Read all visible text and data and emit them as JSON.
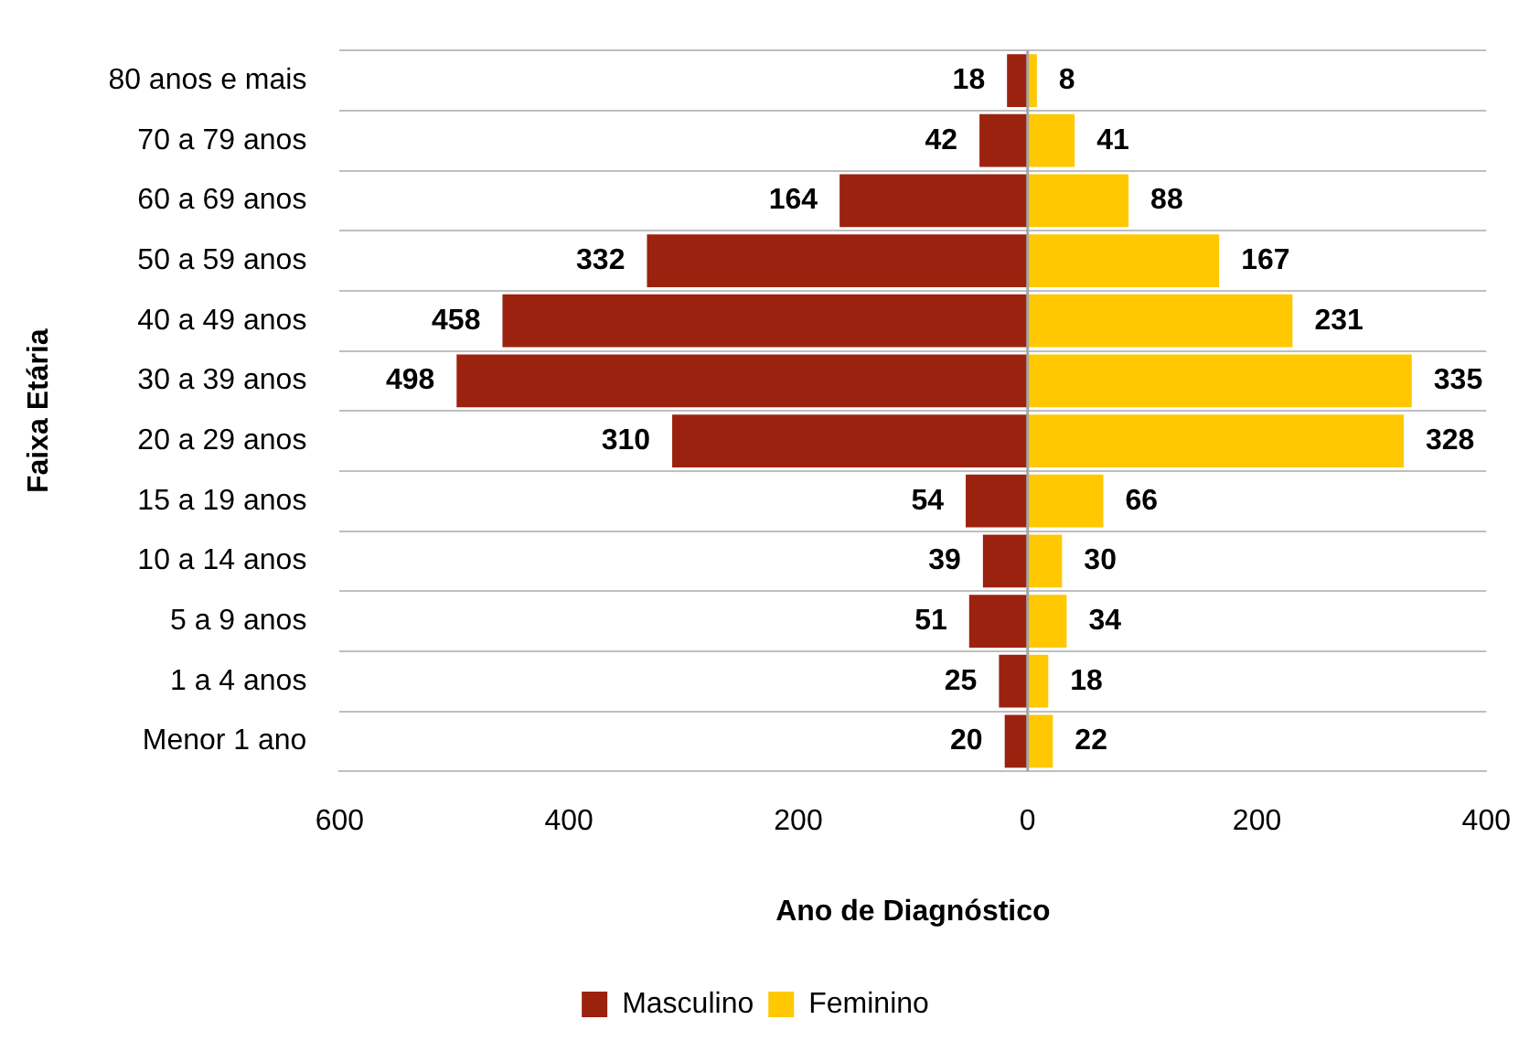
{
  "chart_data": {
    "type": "bar",
    "orientation": "horizontal",
    "xlabel": "Ano de Diagnóstico",
    "ylabel": "Faixa Etária",
    "categories": [
      "80 anos e mais",
      "70 a 79 anos",
      "60 a 69 anos",
      "50 a 59 anos",
      "40 a 49 anos",
      "30 a 39 anos",
      "20 a 29 anos",
      "15 a 19 anos",
      "10 a 14 anos",
      "5 a 9 anos",
      "1 a 4 anos",
      "Menor 1 ano"
    ],
    "series": [
      {
        "name": "Masculino",
        "color": "#9c2210",
        "base": [
          -18,
          -42,
          -164,
          -332,
          -458,
          -498,
          -310,
          -54,
          -39,
          -51,
          -25,
          -20
        ],
        "values": [
          18,
          42,
          164,
          332,
          458,
          498,
          310,
          54,
          39,
          51,
          25,
          20
        ],
        "value_labels": [
          "18",
          "42",
          "164",
          "332",
          "458",
          "498",
          "310",
          "54",
          "39",
          "51",
          "25",
          "20"
        ]
      },
      {
        "name": "Feminino",
        "color": "#ffc800",
        "values": [
          8,
          41,
          88,
          167,
          231,
          335,
          328,
          66,
          30,
          34,
          18,
          22
        ],
        "value_labels": [
          "8",
          "41",
          "88",
          "167",
          "231",
          "335",
          "328",
          "66",
          "30",
          "34",
          "18",
          "22"
        ]
      }
    ],
    "xlim": [
      -600,
      400
    ],
    "xticks": [
      {
        "value": -600,
        "label": "600"
      },
      {
        "value": -400,
        "label": "400"
      },
      {
        "value": -200,
        "label": "200"
      },
      0,
      200,
      400
    ],
    "ref_lines": [
      {
        "axis": "x",
        "value": 0,
        "color": "#a6a6a6"
      }
    ],
    "grid": "y",
    "legend": "bottom"
  }
}
